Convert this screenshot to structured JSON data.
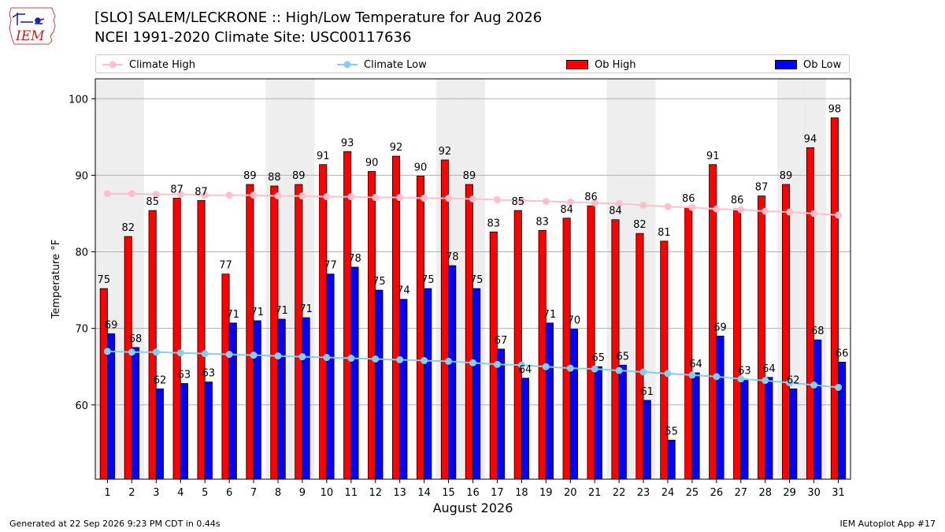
{
  "header": {
    "logo_text": "IEM",
    "title_line1": "[SLO] SALEM/LECKRONE :: High/Low Temperature for Aug 2026",
    "title_line2": "NCEI 1991-2020 Climate Site: USC00117636"
  },
  "legend": {
    "climate_high": "Climate High",
    "climate_low": "Climate Low",
    "ob_high": "Ob High",
    "ob_low": "Ob Low"
  },
  "colors": {
    "climate_high": "#ffc0cb",
    "climate_low": "#87ceeb",
    "ob_high": "#ff0000",
    "ob_low": "#0000ff",
    "weekend_shade": "#eeeeee",
    "grid": "#b0b0b0"
  },
  "footer": {
    "generated": "Generated at 22 Sep 2026 9:23 PM CDT in 0.44s",
    "app": "IEM Autoplot App #17"
  },
  "chart_data": {
    "type": "bar",
    "xlabel": "August 2026",
    "ylabel": "Temperature °F",
    "ylim": [
      50.3,
      102.6
    ],
    "yticks": [
      60,
      70,
      80,
      90,
      100
    ],
    "grid": true,
    "legend_position": "top",
    "categories": [
      "1",
      "2",
      "3",
      "4",
      "5",
      "6",
      "7",
      "8",
      "9",
      "10",
      "11",
      "12",
      "13",
      "14",
      "15",
      "16",
      "17",
      "18",
      "19",
      "20",
      "21",
      "22",
      "23",
      "24",
      "25",
      "26",
      "27",
      "28",
      "29",
      "30",
      "31"
    ],
    "shaded_days": [
      1,
      2,
      8,
      9,
      15,
      16,
      22,
      23,
      29,
      30
    ],
    "series": [
      {
        "name": "Ob High",
        "type": "bar",
        "values": [
          75,
          82,
          85,
          87,
          87,
          77,
          89,
          88,
          89,
          91,
          93,
          90,
          92,
          90,
          92,
          89,
          83,
          85,
          83,
          84,
          86,
          84,
          82,
          81,
          86,
          91,
          86,
          87,
          89,
          94,
          98
        ],
        "bar_heights": [
          75.2,
          82.0,
          85.4,
          87.0,
          86.7,
          77.1,
          88.8,
          88.6,
          88.8,
          91.4,
          93.1,
          90.5,
          92.5,
          89.9,
          92.0,
          88.8,
          82.6,
          85.4,
          82.8,
          84.4,
          86.0,
          84.2,
          82.4,
          81.4,
          85.8,
          91.4,
          85.6,
          87.3,
          88.8,
          93.6,
          97.5
        ]
      },
      {
        "name": "Ob Low",
        "type": "bar",
        "values": [
          69,
          68,
          62,
          63,
          63,
          71,
          71,
          71,
          71,
          77,
          78,
          75,
          74,
          75,
          78,
          75,
          67,
          64,
          71,
          70,
          65,
          65,
          61,
          55,
          64,
          69,
          63,
          64,
          62,
          68,
          66
        ],
        "bar_heights": [
          69.3,
          67.5,
          62.1,
          62.8,
          63.0,
          70.7,
          71.0,
          71.2,
          71.4,
          77.1,
          78.0,
          75.0,
          73.8,
          75.2,
          78.2,
          75.2,
          67.3,
          63.5,
          70.7,
          69.9,
          65.0,
          65.2,
          60.6,
          55.4,
          64.2,
          69.0,
          63.3,
          63.6,
          62.1,
          68.5,
          65.6
        ]
      },
      {
        "name": "Climate High",
        "type": "line",
        "values": [
          87.6,
          87.6,
          87.5,
          87.5,
          87.4,
          87.4,
          87.4,
          87.3,
          87.3,
          87.2,
          87.2,
          87.1,
          87.1,
          87.0,
          87.0,
          86.9,
          86.8,
          86.7,
          86.6,
          86.5,
          86.4,
          86.3,
          86.1,
          85.9,
          85.8,
          85.6,
          85.5,
          85.3,
          85.2,
          85.0,
          84.8
        ]
      },
      {
        "name": "Climate Low",
        "type": "line",
        "values": [
          67.0,
          66.9,
          66.9,
          66.8,
          66.7,
          66.6,
          66.5,
          66.4,
          66.3,
          66.2,
          66.1,
          66.0,
          65.9,
          65.8,
          65.7,
          65.5,
          65.3,
          65.2,
          65.0,
          64.8,
          64.7,
          64.5,
          64.3,
          64.1,
          63.9,
          63.7,
          63.4,
          63.2,
          62.9,
          62.6,
          62.3
        ]
      }
    ]
  }
}
